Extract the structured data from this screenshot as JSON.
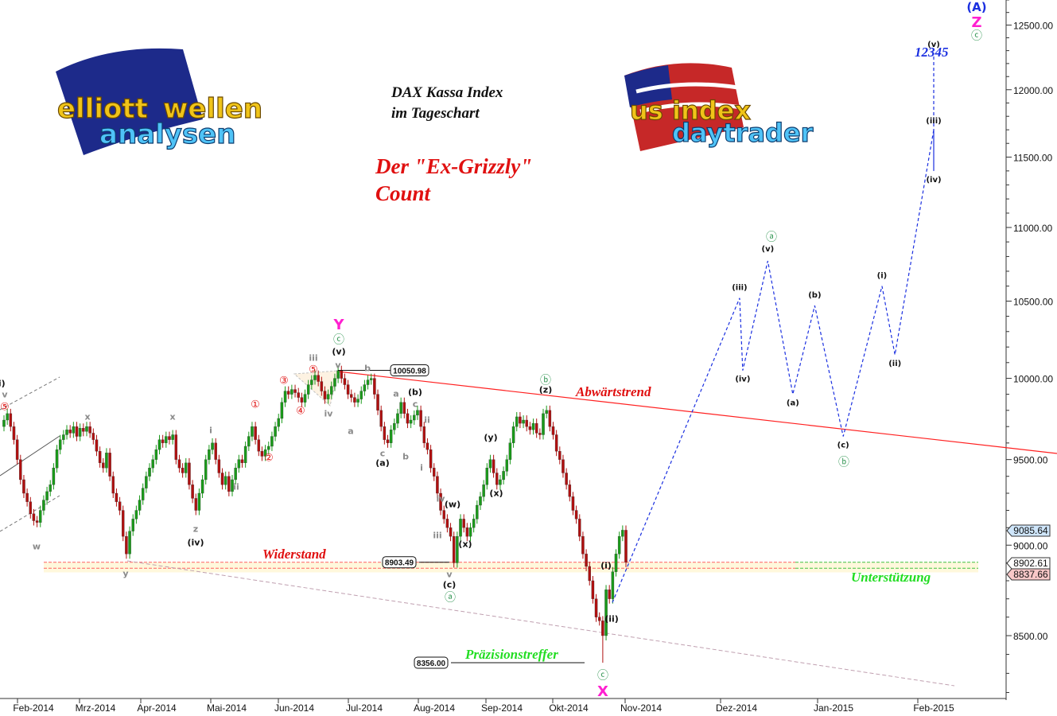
{
  "chart_data": {
    "type": "candlestick",
    "title": "DAX Kassa Index",
    "subtitle": "im Tageschart",
    "headline": [
      "Der \"Ex-Grizzly\"",
      "Count"
    ],
    "y_scale": "log",
    "ylim": [
      8100,
      12700
    ],
    "y_ticks": [
      8500,
      9000,
      9500,
      10000,
      10500,
      11000,
      11500,
      12000,
      12500
    ],
    "y_tick_labels": [
      "8500.00",
      "9000.00",
      "9500.00",
      "10000.00",
      "10500.00",
      "11000.00",
      "11500.00",
      "12000.00",
      "12500.00"
    ],
    "x_tick_labels": [
      "Feb-2014",
      "Mrz-2014",
      "Apr-2014",
      "Mai-2014",
      "Jun-2014",
      "Jul-2014",
      "Aug-2014",
      "Sep-2014",
      "Okt-2014",
      "Nov-2014",
      "Dez-2014",
      "Jan-2015",
      "Feb-2015"
    ],
    "grid": false,
    "first_open": 9700,
    "closes": [
      9740,
      9780,
      9700,
      9620,
      9500,
      9380,
      9300,
      9250,
      9180,
      9140,
      9130,
      9200,
      9260,
      9310,
      9350,
      9450,
      9560,
      9620,
      9650,
      9680,
      9660,
      9700,
      9640,
      9690,
      9670,
      9700,
      9660,
      9620,
      9550,
      9480,
      9450,
      9540,
      9400,
      9300,
      9250,
      9200,
      9050,
      8950,
      9080,
      9150,
      9200,
      9260,
      9330,
      9400,
      9450,
      9500,
      9560,
      9620,
      9600,
      9640,
      9620,
      9650,
      9500,
      9450,
      9420,
      9480,
      9350,
      9270,
      9200,
      9300,
      9380,
      9500,
      9560,
      9600,
      9500,
      9420,
      9350,
      9400,
      9310,
      9380,
      9450,
      9500,
      9480,
      9580,
      9640,
      9700,
      9620,
      9550,
      9520,
      9560,
      9580,
      9640,
      9700,
      9750,
      9850,
      9920,
      9900,
      9930,
      9910,
      9880,
      9850,
      9900,
      9960,
      9990,
      10020,
      9980,
      9920,
      9870,
      9900,
      9950,
      10000,
      10050,
      10000,
      9960,
      9900,
      9880,
      9850,
      9870,
      9920,
      9960,
      9990,
      10000,
      9900,
      9800,
      9700,
      9620,
      9600,
      9680,
      9720,
      9780,
      9850,
      9780,
      9720,
      9740,
      9770,
      9800,
      9700,
      9600,
      9560,
      9450,
      9400,
      9300,
      9200,
      9150,
      9100,
      9050,
      8900,
      9050,
      9150,
      9100,
      9050,
      9100,
      9150,
      9230,
      9280,
      9350,
      9450,
      9500,
      9420,
      9350,
      9380,
      9430,
      9500,
      9600,
      9700,
      9760,
      9720,
      9740,
      9700,
      9680,
      9720,
      9660,
      9650,
      9780,
      9800,
      9700,
      9650,
      9550,
      9500,
      9420,
      9350,
      9280,
      9200,
      9150,
      9050,
      8950,
      8880,
      8800,
      8700,
      8600,
      8580,
      8500,
      8750,
      8700,
      8850,
      8950,
      9050,
      9085.64,
      8902.61
    ],
    "up_color": "#1a9a1a",
    "down_color": "#b01010",
    "marked_levels": [
      {
        "label": "10050.98",
        "value": 10050.98
      },
      {
        "label": "8903.49",
        "value": 8903.49
      },
      {
        "label": "8356.00",
        "value": 8356.0
      }
    ],
    "last_price_labels": [
      {
        "label": "9085.64",
        "value": 9085.64,
        "color": "#cfe6fb"
      },
      {
        "label": "8902.61",
        "value": 8902.61,
        "color": "#ffffff"
      },
      {
        "label": "8837.66",
        "value": 8837.66,
        "color": "#f9c8c8"
      }
    ],
    "projection": {
      "color": "#1a2fe0",
      "points": [
        {
          "date": "2014-10-16",
          "value": 8680,
          "label": "(ii)"
        },
        {
          "date": "2014-12-02",
          "value": 10520,
          "label": "(iii)"
        },
        {
          "date": "2014-12-03",
          "value": 10050,
          "label": "(iv)"
        },
        {
          "date": "2014-12-11",
          "value": 10770,
          "label": "(v)"
        },
        {
          "date": "2014-12-19",
          "value": 9900,
          "label": "(a)"
        },
        {
          "date": "2014-12-26",
          "value": 10470,
          "label": "(b)"
        },
        {
          "date": "2015-01-04",
          "value": 9640,
          "label": "(c)"
        },
        {
          "date": "2015-01-16",
          "value": 10600,
          "label": "(i)"
        },
        {
          "date": "2015-01-20",
          "value": 10150,
          "label": "(ii)"
        },
        {
          "date": "2015-02-02",
          "value": 11700,
          "label": "(iii)"
        },
        {
          "date": "2015-02-06",
          "value": 11400,
          "label": "(iv)"
        },
        {
          "date": "2015-02-14",
          "value": 12280,
          "label": "(v)"
        }
      ]
    },
    "annotations": {
      "downtrend": "Abwärtstrend",
      "resistance": "Widerstand",
      "support": "Unterstützung",
      "precision_hit": "Präzisionstreffer",
      "target": "12345"
    },
    "wave_labels": [
      {
        "text": "(iii)",
        "style": "black"
      },
      {
        "text": "(v)",
        "style": "black"
      },
      {
        "text": "(z)",
        "style": "black"
      },
      {
        "text": "(b)",
        "style": "black"
      },
      {
        "text": "(a)",
        "style": "black"
      },
      {
        "text": "(w)",
        "style": "black"
      },
      {
        "text": "(x)",
        "style": "black"
      },
      {
        "text": "(x)",
        "style": "black"
      },
      {
        "text": "(y)",
        "style": "black"
      },
      {
        "text": "(c)",
        "style": "black"
      },
      {
        "text": "(iv)",
        "style": "black"
      },
      {
        "text": "(i)",
        "style": "black"
      },
      {
        "text": "(ii)",
        "style": "black"
      },
      {
        "text": "v",
        "style": "grey"
      },
      {
        "text": "w",
        "style": "grey"
      },
      {
        "text": "x",
        "style": "grey"
      },
      {
        "text": "y",
        "style": "grey"
      },
      {
        "text": "x",
        "style": "grey"
      },
      {
        "text": "z",
        "style": "grey"
      },
      {
        "text": "i",
        "style": "grey"
      },
      {
        "text": "ii",
        "style": "grey"
      },
      {
        "text": "iii",
        "style": "grey"
      },
      {
        "text": "v",
        "style": "grey"
      },
      {
        "text": "iv",
        "style": "grey"
      },
      {
        "text": "a",
        "style": "grey"
      },
      {
        "text": "b",
        "style": "grey"
      },
      {
        "text": "a",
        "style": "grey"
      },
      {
        "text": "c",
        "style": "grey"
      },
      {
        "text": "b",
        "style": "grey"
      },
      {
        "text": "c",
        "style": "grey"
      },
      {
        "text": "ii",
        "style": "grey"
      },
      {
        "text": "i",
        "style": "grey"
      },
      {
        "text": "iv",
        "style": "grey"
      },
      {
        "text": "iii",
        "style": "grey"
      },
      {
        "text": "v",
        "style": "grey"
      },
      {
        "text": "⑤",
        "style": "red"
      },
      {
        "text": "①",
        "style": "red"
      },
      {
        "text": "②",
        "style": "red"
      },
      {
        "text": "③",
        "style": "red"
      },
      {
        "text": "④",
        "style": "red"
      },
      {
        "text": "⑤",
        "style": "red"
      },
      {
        "text": "ⓒ",
        "style": "green"
      },
      {
        "text": "ⓑ",
        "style": "green"
      },
      {
        "text": "ⓐ",
        "style": "green"
      },
      {
        "text": "ⓒ",
        "style": "green"
      },
      {
        "text": "ⓐ",
        "style": "green"
      },
      {
        "text": "ⓑ",
        "style": "green"
      },
      {
        "text": "ⓒ",
        "style": "green"
      },
      {
        "text": "Y",
        "style": "magenta"
      },
      {
        "text": "X",
        "style": "magenta"
      },
      {
        "text": "Z",
        "style": "magenta"
      },
      {
        "text": "(A)",
        "style": "blue"
      }
    ]
  },
  "logos": {
    "left": "elliott wellen analysen",
    "right": "us index daytrader"
  }
}
